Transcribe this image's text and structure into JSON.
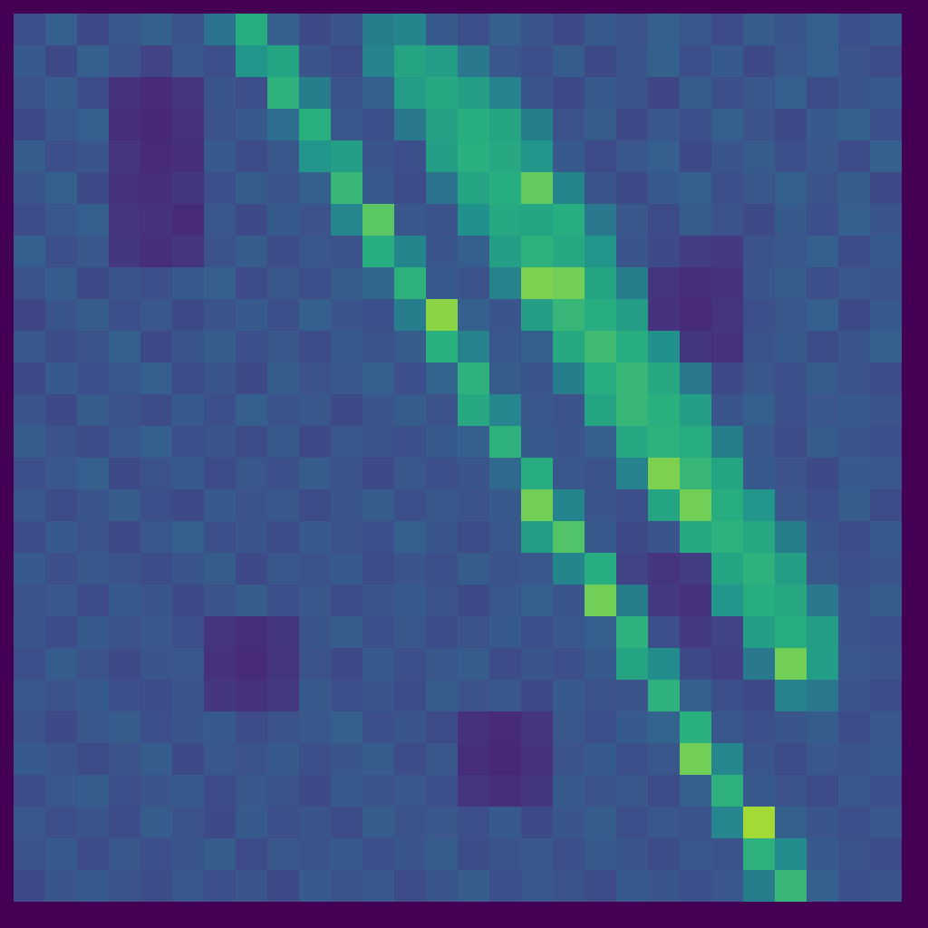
{
  "chart_data": {
    "type": "heatmap",
    "tick_labels": false,
    "grid": false,
    "xlim": [
      0,
      28
    ],
    "ylim": [
      0,
      28
    ],
    "cells": [
      [
        0.24,
        0.3,
        0.22,
        0.27,
        0.31,
        0.25,
        0.38,
        0.62,
        0.3,
        0.22,
        0.26,
        0.42,
        0.45,
        0.28,
        0.24,
        0.3,
        0.26,
        0.22,
        0.28,
        0.25,
        0.3,
        0.27,
        0.23,
        0.29,
        0.26,
        0.31,
        0.24,
        0.28
      ],
      [
        0.28,
        0.22,
        0.3,
        0.25,
        0.2,
        0.27,
        0.24,
        0.52,
        0.58,
        0.26,
        0.23,
        0.44,
        0.58,
        0.55,
        0.4,
        0.27,
        0.24,
        0.29,
        0.22,
        0.26,
        0.31,
        0.24,
        0.28,
        0.22,
        0.27,
        0.3,
        0.25,
        0.23
      ],
      [
        0.25,
        0.29,
        0.23,
        0.14,
        0.12,
        0.15,
        0.26,
        0.24,
        0.64,
        0.42,
        0.25,
        0.3,
        0.55,
        0.6,
        0.56,
        0.44,
        0.26,
        0.22,
        0.28,
        0.25,
        0.21,
        0.29,
        0.24,
        0.27,
        0.3,
        0.23,
        0.26,
        0.28
      ],
      [
        0.22,
        0.27,
        0.3,
        0.13,
        0.11,
        0.14,
        0.25,
        0.28,
        0.36,
        0.63,
        0.27,
        0.24,
        0.4,
        0.57,
        0.62,
        0.58,
        0.42,
        0.25,
        0.29,
        0.22,
        0.27,
        0.24,
        0.3,
        0.25,
        0.22,
        0.28,
        0.31,
        0.24
      ],
      [
        0.29,
        0.24,
        0.26,
        0.15,
        0.12,
        0.13,
        0.28,
        0.23,
        0.27,
        0.52,
        0.56,
        0.26,
        0.24,
        0.56,
        0.63,
        0.6,
        0.52,
        0.28,
        0.23,
        0.27,
        0.3,
        0.22,
        0.26,
        0.29,
        0.24,
        0.27,
        0.23,
        0.3
      ],
      [
        0.26,
        0.31,
        0.22,
        0.14,
        0.13,
        0.16,
        0.24,
        0.29,
        0.25,
        0.3,
        0.66,
        0.28,
        0.23,
        0.38,
        0.58,
        0.62,
        0.76,
        0.45,
        0.26,
        0.22,
        0.28,
        0.3,
        0.24,
        0.27,
        0.31,
        0.25,
        0.29,
        0.22
      ],
      [
        0.23,
        0.27,
        0.3,
        0.15,
        0.14,
        0.12,
        0.27,
        0.22,
        0.28,
        0.25,
        0.46,
        0.74,
        0.27,
        0.25,
        0.5,
        0.6,
        0.58,
        0.62,
        0.4,
        0.27,
        0.23,
        0.29,
        0.25,
        0.22,
        0.28,
        0.24,
        0.3,
        0.26
      ],
      [
        0.3,
        0.24,
        0.27,
        0.16,
        0.13,
        0.15,
        0.25,
        0.29,
        0.23,
        0.27,
        0.25,
        0.62,
        0.45,
        0.26,
        0.3,
        0.56,
        0.64,
        0.6,
        0.52,
        0.26,
        0.22,
        0.18,
        0.17,
        0.25,
        0.27,
        0.3,
        0.23,
        0.28
      ],
      [
        0.25,
        0.29,
        0.22,
        0.26,
        0.24,
        0.28,
        0.3,
        0.23,
        0.27,
        0.24,
        0.29,
        0.33,
        0.64,
        0.28,
        0.25,
        0.44,
        0.8,
        0.78,
        0.58,
        0.42,
        0.15,
        0.13,
        0.14,
        0.26,
        0.29,
        0.24,
        0.27,
        0.25
      ],
      [
        0.21,
        0.26,
        0.29,
        0.24,
        0.27,
        0.22,
        0.25,
        0.28,
        0.24,
        0.3,
        0.26,
        0.24,
        0.42,
        0.82,
        0.3,
        0.26,
        0.56,
        0.66,
        0.62,
        0.55,
        0.14,
        0.12,
        0.15,
        0.24,
        0.27,
        0.3,
        0.22,
        0.28
      ],
      [
        0.27,
        0.23,
        0.25,
        0.3,
        0.22,
        0.26,
        0.29,
        0.24,
        0.27,
        0.23,
        0.28,
        0.25,
        0.29,
        0.63,
        0.44,
        0.27,
        0.3,
        0.6,
        0.68,
        0.62,
        0.5,
        0.16,
        0.14,
        0.25,
        0.28,
        0.23,
        0.26,
        0.3
      ],
      [
        0.22,
        0.28,
        0.24,
        0.27,
        0.3,
        0.23,
        0.26,
        0.22,
        0.29,
        0.25,
        0.27,
        0.3,
        0.24,
        0.32,
        0.64,
        0.29,
        0.26,
        0.42,
        0.62,
        0.66,
        0.6,
        0.4,
        0.22,
        0.27,
        0.24,
        0.29,
        0.25,
        0.23
      ],
      [
        0.26,
        0.22,
        0.29,
        0.25,
        0.23,
        0.28,
        0.24,
        0.3,
        0.25,
        0.27,
        0.22,
        0.26,
        0.29,
        0.25,
        0.6,
        0.46,
        0.27,
        0.25,
        0.58,
        0.66,
        0.63,
        0.56,
        0.26,
        0.3,
        0.24,
        0.27,
        0.28,
        0.25
      ],
      [
        0.29,
        0.25,
        0.23,
        0.27,
        0.3,
        0.24,
        0.26,
        0.23,
        0.28,
        0.22,
        0.27,
        0.25,
        0.24,
        0.28,
        0.3,
        0.64,
        0.28,
        0.26,
        0.3,
        0.6,
        0.64,
        0.62,
        0.42,
        0.27,
        0.23,
        0.29,
        0.26,
        0.24
      ],
      [
        0.24,
        0.27,
        0.3,
        0.22,
        0.25,
        0.28,
        0.23,
        0.27,
        0.24,
        0.29,
        0.25,
        0.22,
        0.27,
        0.24,
        0.26,
        0.34,
        0.62,
        0.27,
        0.25,
        0.44,
        0.8,
        0.66,
        0.58,
        0.28,
        0.25,
        0.22,
        0.28,
        0.27
      ],
      [
        0.27,
        0.23,
        0.26,
        0.29,
        0.24,
        0.22,
        0.28,
        0.25,
        0.27,
        0.23,
        0.26,
        0.29,
        0.24,
        0.27,
        0.25,
        0.28,
        0.78,
        0.45,
        0.26,
        0.24,
        0.58,
        0.78,
        0.62,
        0.52,
        0.27,
        0.24,
        0.29,
        0.23
      ],
      [
        0.23,
        0.28,
        0.25,
        0.22,
        0.27,
        0.3,
        0.24,
        0.26,
        0.23,
        0.28,
        0.25,
        0.24,
        0.3,
        0.26,
        0.23,
        0.27,
        0.55,
        0.72,
        0.28,
        0.22,
        0.26,
        0.6,
        0.64,
        0.6,
        0.42,
        0.26,
        0.23,
        0.28
      ],
      [
        0.28,
        0.24,
        0.27,
        0.25,
        0.23,
        0.26,
        0.29,
        0.22,
        0.27,
        0.25,
        0.28,
        0.23,
        0.26,
        0.24,
        0.29,
        0.25,
        0.27,
        0.45,
        0.62,
        0.2,
        0.15,
        0.18,
        0.58,
        0.64,
        0.56,
        0.27,
        0.24,
        0.26
      ],
      [
        0.25,
        0.27,
        0.23,
        0.28,
        0.26,
        0.22,
        0.25,
        0.29,
        0.24,
        0.27,
        0.23,
        0.26,
        0.28,
        0.25,
        0.22,
        0.27,
        0.3,
        0.26,
        0.78,
        0.42,
        0.17,
        0.14,
        0.52,
        0.62,
        0.6,
        0.4,
        0.25,
        0.29
      ],
      [
        0.26,
        0.23,
        0.28,
        0.25,
        0.27,
        0.24,
        0.15,
        0.13,
        0.16,
        0.26,
        0.29,
        0.24,
        0.27,
        0.23,
        0.25,
        0.28,
        0.24,
        0.27,
        0.3,
        0.64,
        0.24,
        0.17,
        0.2,
        0.56,
        0.62,
        0.55,
        0.26,
        0.24
      ],
      [
        0.24,
        0.29,
        0.25,
        0.22,
        0.26,
        0.27,
        0.14,
        0.12,
        0.15,
        0.25,
        0.22,
        0.28,
        0.24,
        0.27,
        0.29,
        0.23,
        0.26,
        0.24,
        0.28,
        0.58,
        0.48,
        0.22,
        0.19,
        0.4,
        0.78,
        0.55,
        0.27,
        0.25
      ],
      [
        0.27,
        0.25,
        0.28,
        0.24,
        0.23,
        0.26,
        0.16,
        0.14,
        0.17,
        0.28,
        0.24,
        0.26,
        0.23,
        0.29,
        0.25,
        0.27,
        0.22,
        0.28,
        0.25,
        0.26,
        0.64,
        0.3,
        0.24,
        0.22,
        0.44,
        0.4,
        0.26,
        0.23
      ],
      [
        0.25,
        0.22,
        0.27,
        0.29,
        0.24,
        0.26,
        0.28,
        0.23,
        0.25,
        0.27,
        0.3,
        0.24,
        0.26,
        0.23,
        0.14,
        0.12,
        0.15,
        0.27,
        0.24,
        0.28,
        0.32,
        0.63,
        0.27,
        0.24,
        0.26,
        0.29,
        0.23,
        0.27
      ],
      [
        0.28,
        0.26,
        0.23,
        0.25,
        0.29,
        0.22,
        0.27,
        0.25,
        0.28,
        0.24,
        0.26,
        0.29,
        0.23,
        0.27,
        0.13,
        0.11,
        0.14,
        0.25,
        0.28,
        0.24,
        0.27,
        0.78,
        0.46,
        0.26,
        0.23,
        0.27,
        0.25,
        0.28
      ],
      [
        0.23,
        0.27,
        0.29,
        0.24,
        0.26,
        0.28,
        0.23,
        0.27,
        0.25,
        0.22,
        0.28,
        0.25,
        0.27,
        0.24,
        0.15,
        0.13,
        0.16,
        0.28,
        0.25,
        0.27,
        0.23,
        0.3,
        0.64,
        0.28,
        0.25,
        0.23,
        0.27,
        0.24
      ],
      [
        0.27,
        0.24,
        0.26,
        0.23,
        0.29,
        0.25,
        0.22,
        0.28,
        0.24,
        0.26,
        0.23,
        0.29,
        0.25,
        0.27,
        0.24,
        0.28,
        0.22,
        0.26,
        0.29,
        0.24,
        0.27,
        0.25,
        0.46,
        0.86,
        0.3,
        0.26,
        0.24,
        0.27
      ],
      [
        0.25,
        0.28,
        0.23,
        0.27,
        0.24,
        0.26,
        0.29,
        0.23,
        0.27,
        0.25,
        0.28,
        0.24,
        0.26,
        0.29,
        0.23,
        0.25,
        0.27,
        0.24,
        0.28,
        0.26,
        0.23,
        0.27,
        0.25,
        0.64,
        0.48,
        0.28,
        0.25,
        0.23
      ],
      [
        0.22,
        0.26,
        0.28,
        0.25,
        0.23,
        0.27,
        0.24,
        0.26,
        0.22,
        0.28,
        0.25,
        0.27,
        0.23,
        0.26,
        0.29,
        0.24,
        0.27,
        0.25,
        0.23,
        0.28,
        0.26,
        0.24,
        0.27,
        0.42,
        0.66,
        0.3,
        0.24,
        0.26
      ]
    ]
  }
}
